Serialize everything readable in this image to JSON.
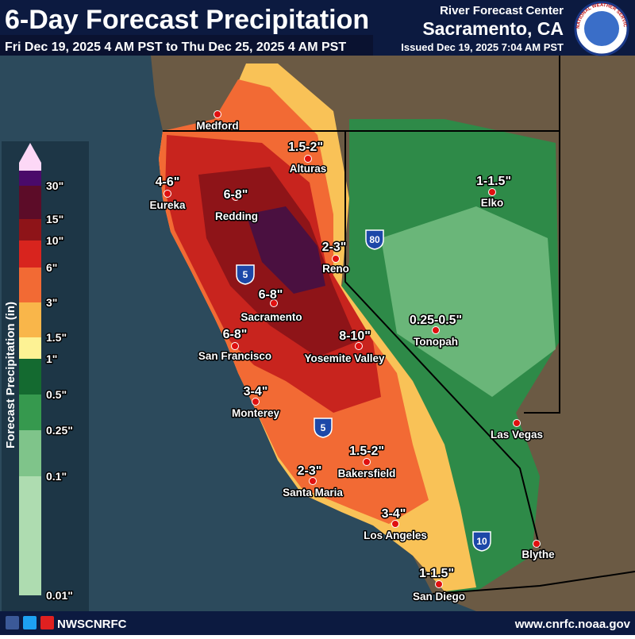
{
  "header": {
    "title": "6-Day Forecast Precipitation",
    "period": "Fri Dec 19, 2025 4 AM PST to Thu Dec 25, 2025 4 AM PST",
    "office": "River Forecast Center",
    "location": "Sacramento, CA",
    "issued": "Issued Dec 19, 2025 7:04 AM PST",
    "logo_text": "NATIONAL WEATHER SERVICE"
  },
  "legend": {
    "title": "Forecast Precipitation (in)",
    "items": [
      {
        "label": "30\"",
        "color": "#4a0a6a"
      },
      {
        "label": "15\"",
        "color": "#5c0c28"
      },
      {
        "label": "10\"",
        "color": "#8e1418"
      },
      {
        "label": "6\"",
        "color": "#d8241e"
      },
      {
        "label": "3\"",
        "color": "#f26a34"
      },
      {
        "label": "1.5\"",
        "color": "#f9b64a"
      },
      {
        "label": "1\"",
        "color": "#fdf294"
      },
      {
        "label": "0.5\"",
        "color": "#146a30"
      },
      {
        "label": "0.25\"",
        "color": "#36994e"
      },
      {
        "label": "0.1\"",
        "color": "#7fc48a"
      },
      {
        "label": "0.01\"",
        "color": "#aedcb0"
      }
    ],
    "top_color": "#fcd8f6",
    "bottom_color": "#cbe9cb"
  },
  "cities": [
    {
      "name": "Medford"
    },
    {
      "name": "Alturas",
      "amount": "1.5-2\""
    },
    {
      "name": "Eureka",
      "amount": "4-6\""
    },
    {
      "name": "Redding",
      "amount": "6-8\""
    },
    {
      "name": "Elko",
      "amount": "1-1.5\""
    },
    {
      "name": "Reno",
      "amount": "2-3\""
    },
    {
      "name": "Sacramento",
      "amount": "6-8\""
    },
    {
      "name": "San Francisco",
      "amount": "6-8\""
    },
    {
      "name": "Yosemite Valley",
      "amount": "8-10\""
    },
    {
      "name": "Tonopah",
      "amount": "0.25-0.5\""
    },
    {
      "name": "Monterey",
      "amount": "3-4\""
    },
    {
      "name": "Las Vegas"
    },
    {
      "name": "Bakersfield",
      "amount": "1.5-2\""
    },
    {
      "name": "Santa Maria",
      "amount": "2-3\""
    },
    {
      "name": "Los Angeles",
      "amount": "3-4\""
    },
    {
      "name": "Blythe"
    },
    {
      "name": "San Diego",
      "amount": "1-1.5\""
    }
  ],
  "interstates": [
    "80",
    "5",
    "5",
    "10"
  ],
  "footer": {
    "social": "NWSCNRFC",
    "url": "www.cnrfc.noaa.gov"
  }
}
